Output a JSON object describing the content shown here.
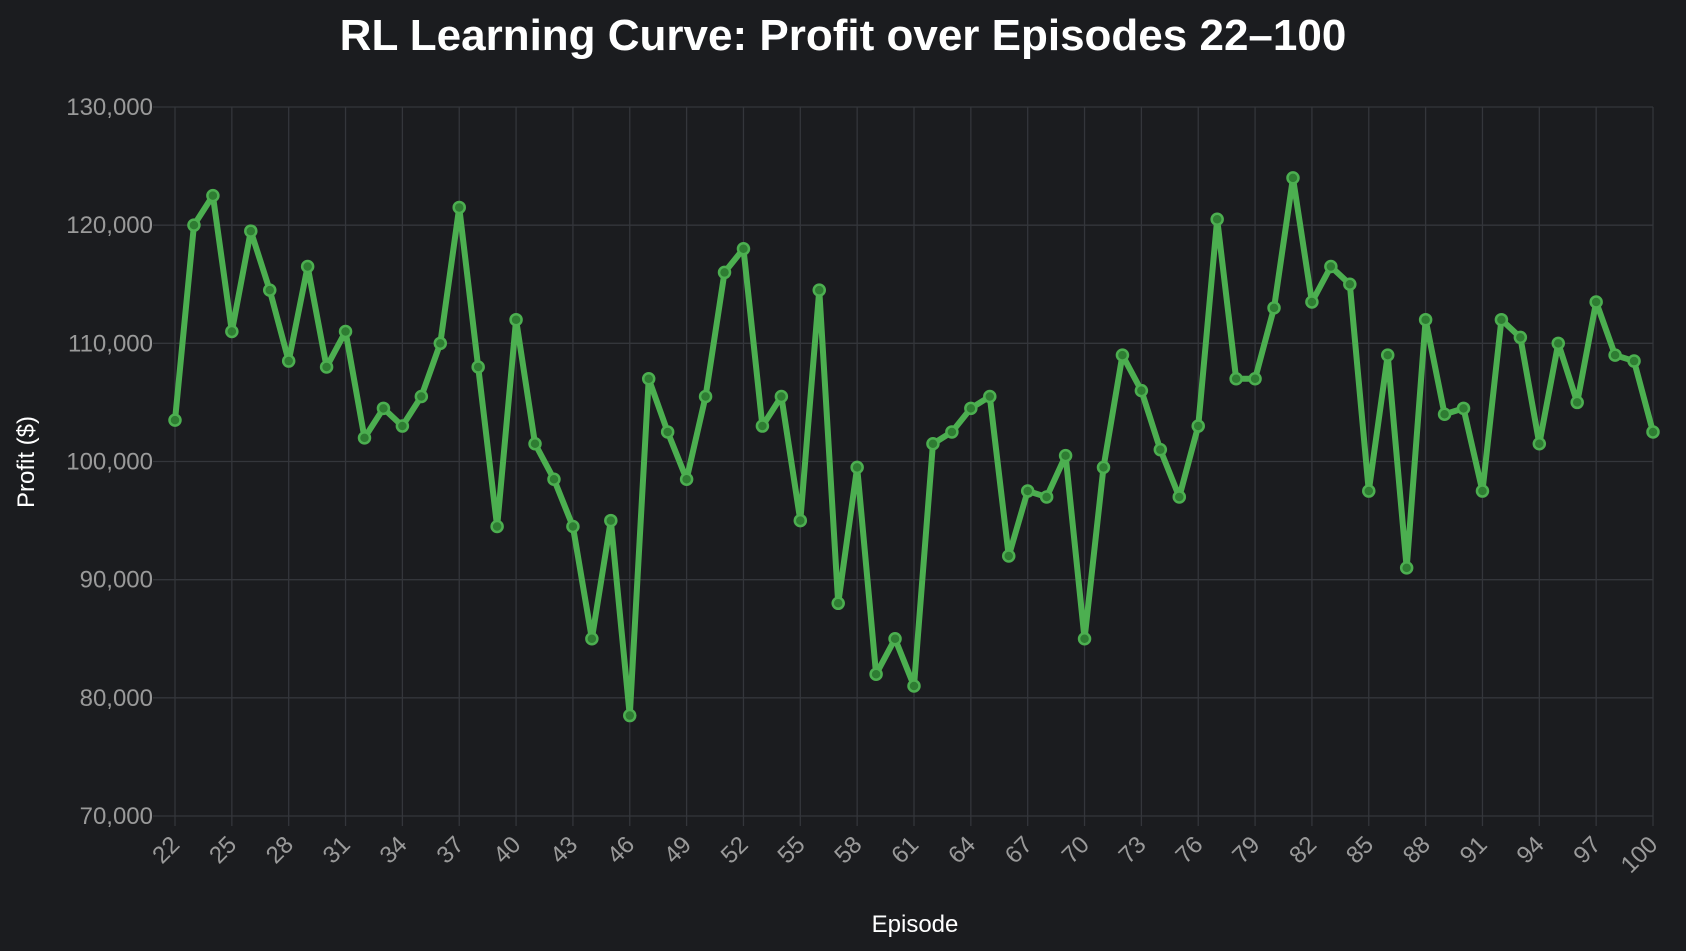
{
  "chart_data": {
    "type": "line",
    "title": "RL Learning Curve: Profit over Episodes 22–100",
    "xlabel": "Episode",
    "ylabel": "Profit ($)",
    "ylim": [
      70000,
      130000
    ],
    "xlim": [
      22,
      100
    ],
    "grid": true,
    "line_color": "#4caf50",
    "background": "#1b1c1f",
    "x_ticks": [
      22,
      25,
      28,
      31,
      34,
      37,
      40,
      43,
      46,
      49,
      52,
      55,
      58,
      61,
      64,
      67,
      70,
      73,
      76,
      79,
      82,
      85,
      88,
      91,
      94,
      97,
      100
    ],
    "y_ticks": [
      70000,
      80000,
      90000,
      100000,
      110000,
      120000,
      130000
    ],
    "y_tick_labels": [
      "70,000",
      "80,000",
      "90,000",
      "100,000",
      "110,000",
      "120,000",
      "130,000"
    ],
    "series": [
      {
        "x": [
          22,
          23,
          24,
          25,
          26,
          27,
          28,
          29,
          30,
          31,
          32,
          33,
          34,
          35,
          36,
          37,
          38,
          39,
          40,
          41,
          42,
          43,
          44,
          45,
          46,
          47,
          48,
          49,
          50,
          51,
          52,
          53,
          54,
          55,
          56,
          57,
          58,
          59,
          60,
          61,
          62,
          63,
          64,
          65,
          66,
          67,
          68,
          69,
          70,
          71,
          72,
          73,
          74,
          75,
          76,
          77,
          78,
          79,
          80,
          81,
          82,
          83,
          84,
          85,
          86,
          87,
          88,
          89,
          90,
          91,
          92,
          93,
          94,
          95,
          96,
          97,
          98,
          99,
          100
        ],
        "values": [
          103500,
          120000,
          122500,
          111000,
          119500,
          114500,
          108500,
          116500,
          108000,
          111000,
          102000,
          104500,
          103000,
          105500,
          110000,
          121500,
          108000,
          94500,
          112000,
          101500,
          98500,
          94500,
          85000,
          95000,
          78500,
          107000,
          102500,
          98500,
          105500,
          116000,
          118000,
          103000,
          105500,
          95000,
          114500,
          88000,
          99500,
          82000,
          85000,
          81000,
          101500,
          102500,
          104500,
          105500,
          92000,
          97500,
          97000,
          100500,
          85000,
          99500,
          109000,
          106000,
          101000,
          97000,
          103000,
          120500,
          107000,
          107000,
          113000,
          124000,
          113500,
          116500,
          115000,
          97500,
          109000,
          91000,
          112000,
          104000,
          104500,
          97500,
          112000,
          110500,
          101500,
          110000,
          105000,
          113500,
          109000,
          108500,
          102500
        ]
      }
    ]
  }
}
